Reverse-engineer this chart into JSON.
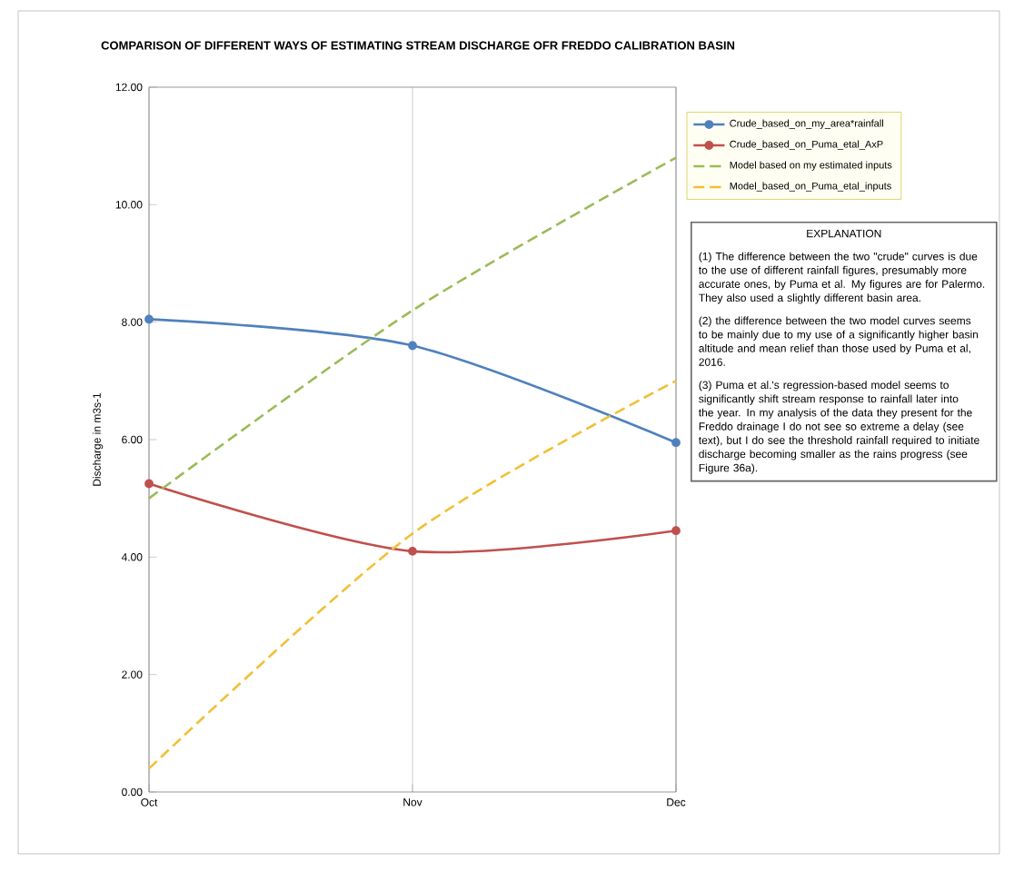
{
  "chart_data": {
    "type": "line",
    "title": "COMPARISON OF DIFFERENT WAYS OF ESTIMATING STREAM DISCHARGE OFR FREDDO CALIBRATION BASIN",
    "ylabel": "Discharge in m3s-1",
    "categories": [
      "Oct",
      "Nov",
      "Dec"
    ],
    "series": [
      {
        "name": "Crude_based_on_my_area*rainfall",
        "color": "#4f81bd",
        "values": [
          8.05,
          7.6,
          5.95
        ],
        "marker": "circle",
        "line_style": "solid"
      },
      {
        "name": "Crude_based_on_Puma_etal_AxP",
        "color": "#c0504d",
        "values": [
          5.25,
          4.1,
          4.45
        ],
        "marker": "circle",
        "line_style": "solid"
      },
      {
        "name": "Model based on my estimated inputs",
        "color": "#9bbb59",
        "values": [
          5.0,
          8.2,
          10.8
        ],
        "marker": "none",
        "line_style": "dashed"
      },
      {
        "name": "Model_based_on_Puma_etal_inputs",
        "color": "#f2c037",
        "values": [
          0.4,
          4.4,
          7.0
        ],
        "marker": "none",
        "line_style": "dashed"
      }
    ],
    "ylim": [
      0,
      12
    ],
    "yticks": [
      {
        "value": 0,
        "label": "0.00"
      },
      {
        "value": 2,
        "label": "2.00"
      },
      {
        "value": 4,
        "label": "4.00"
      },
      {
        "value": 6,
        "label": "6.00"
      },
      {
        "value": 8,
        "label": "8.00"
      },
      {
        "value": 10,
        "label": "10.00"
      },
      {
        "value": 12,
        "label": "12.00"
      }
    ],
    "grid": "x",
    "legend": "top right",
    "annotations": [
      "EXPLANATION",
      "(1) The difference between the two \"crude\" curves is due to the use of different rainfall figures, presumably more accurate ones, by Puma et al.  My figures are for Palermo. They also used a slightly different basin area.",
      "(2) the difference between the two model curves seems to be mainly due to my use of a significantly higher basin altitude and mean relief than those used by Puma et al, 2016.",
      "(3)  Puma et al.'s regression-based model seems to significantly shift stream response to rainfall later into the year. In my analysis of the data they present for the Freddo drainage I do not see so extreme a delay (see text), but I do see the threshold rainfall required to initiate discharge becoming smaller as the rains progress (see Figure 36a)."
    ]
  }
}
